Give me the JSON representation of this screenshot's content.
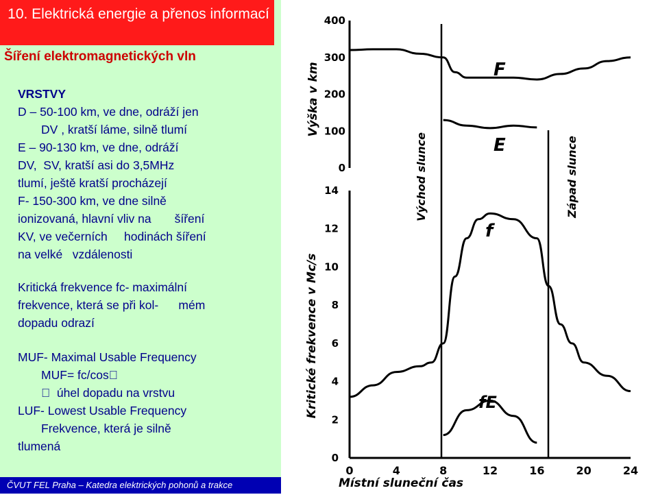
{
  "slide": {
    "title": "10. Elektrická energie a přenos informací",
    "subtitle": "Šíření elektromagnetických vln",
    "footer": "ČVUT FEL Praha – Katedra elektrických pohonů a trakce"
  },
  "body": {
    "layers_heading": "VRSTVY",
    "d_line1": "D – 50-100 km, ve dne, odráží jen",
    "d_line2": "       DV , kratší láme, silně tlumí",
    "e_line1": "E – 90-130 km, ve dne, odráží",
    "e_line2": "DV,  SV, kratší asi do 3,5MHz",
    "e_line3": "tlumí, ještě kratší procházejí",
    "f_line1": "F- 150-300 km, ve dne silně",
    "f_line2": "ionizovaná, hlavní vliv na       šíření",
    "f_line3": "KV, ve večerních     hodinách šíření",
    "f_line4": "na velké   vzdálenosti",
    "crit_line1": "Kritická frekvence fc- maximální",
    "crit_line2": "frekvence, která se při kol-      mém",
    "crit_line3": "dopadu odrazí",
    "muf_line1": "MUF- Maximal Usable Frequency",
    "muf_line2": "       MUF= fc/cos",
    "muf_line3": "         úhel dopadu na vrstvu",
    "luf_line1": "LUF- Lowest Usable Frequency",
    "luf_line2": "       Frekvence, která je silně",
    "luf_line3": "tlumená"
  },
  "figure": {
    "y_label_top": "Výška v km",
    "y_label_bottom": "Kritické frekvence v Mc/s",
    "x_label": "Místní sluneční čas",
    "sunrise_label": "Východ slunce",
    "sunset_label": "Západ slunce",
    "top_ticks": [
      "400",
      "300",
      "200",
      "100",
      "0"
    ],
    "bottom_ticks": [
      "14",
      "12",
      "10",
      "8",
      "6",
      "4",
      "2",
      "0"
    ],
    "x_ticks": [
      "0",
      "4",
      "8",
      "12",
      "16",
      "20",
      "24"
    ],
    "curve_F": "F",
    "curve_E": "E",
    "curve_f": "f",
    "curve_fE": "fE"
  },
  "chart_data": {
    "type": "line",
    "title": "",
    "xlabel": "Místní sluneční čas",
    "panels": [
      {
        "ylabel": "Výška v km",
        "ylim": [
          0,
          400
        ],
        "series": [
          {
            "name": "F",
            "x": [
              0,
              2,
              4,
              6,
              8,
              9,
              10,
              12,
              14,
              16,
              18,
              20,
              22,
              24
            ],
            "y": [
              320,
              322,
              322,
              310,
              300,
              260,
              245,
              245,
              245,
              240,
              255,
              270,
              290,
              300
            ]
          },
          {
            "name": "E",
            "x": [
              8,
              10,
              12,
              14,
              16
            ],
            "y": [
              130,
              115,
              108,
              115,
              110
            ]
          }
        ]
      },
      {
        "ylabel": "Kritické frekvence v Mc/s",
        "ylim": [
          0,
          14
        ],
        "series": [
          {
            "name": "f",
            "x": [
              0,
              2,
              4,
              6,
              7,
              8,
              9,
              10,
              11,
              12,
              14,
              16,
              17,
              18,
              19,
              20,
              22,
              24
            ],
            "y": [
              3.2,
              3.8,
              4.5,
              4.8,
              5.0,
              6.0,
              9.5,
              11.5,
              12.5,
              12.8,
              12.5,
              11.5,
              9.0,
              7.0,
              6.0,
              5.0,
              4.3,
              3.5
            ]
          },
          {
            "name": "fE",
            "x": [
              8,
              10,
              12,
              14,
              16
            ],
            "y": [
              1.2,
              2.5,
              3.0,
              2.2,
              0.8
            ]
          }
        ]
      }
    ]
  }
}
